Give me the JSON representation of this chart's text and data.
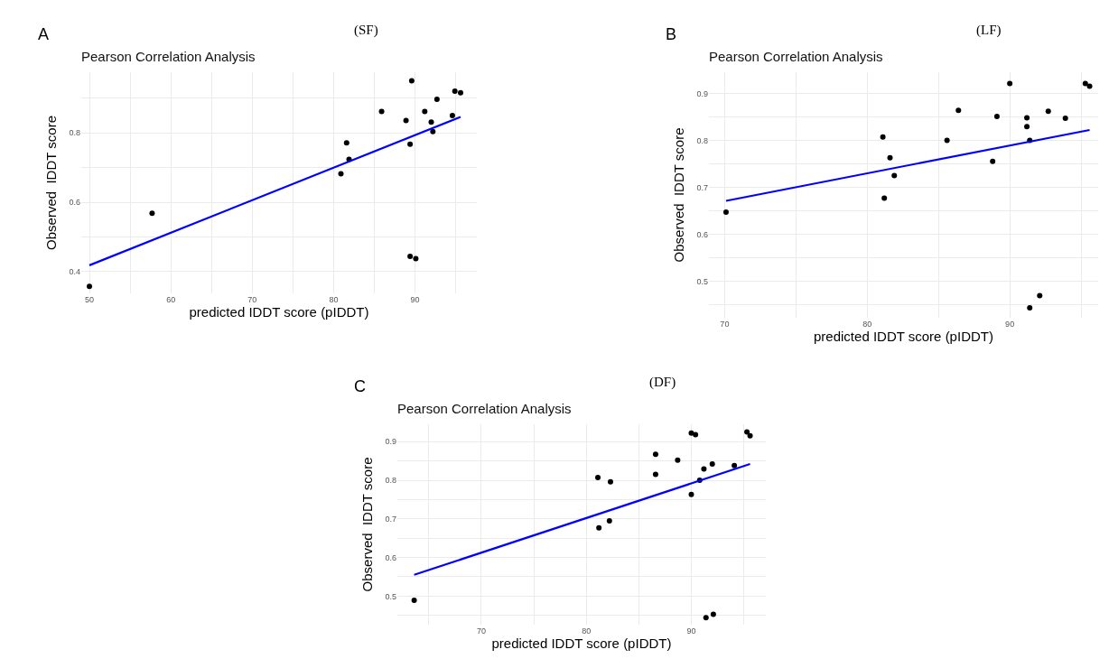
{
  "chart_data": [
    {
      "type": "scatter",
      "title": "Pearson Correlation Analysis",
      "subtitle": "(SF)",
      "xlabel": "predicted IDDT score (pIDDT)",
      "ylabel": "Observed  IDDT score",
      "annotations": [
        "A"
      ],
      "grid": true,
      "xlim": [
        49,
        97.6
      ],
      "ylim": [
        0.337,
        0.975
      ],
      "xticks": [
        50,
        {
          "value": 55,
          "label": null
        },
        60,
        {
          "value": 65,
          "label": null
        },
        70,
        {
          "value": 75,
          "label": null
        },
        80,
        {
          "value": 85,
          "label": null
        },
        90,
        {
          "value": 95,
          "label": null
        }
      ],
      "yticks": [
        0.4,
        {
          "value": 0.5,
          "label": null
        },
        0.6,
        {
          "value": 0.7,
          "label": null
        },
        0.8,
        {
          "value": 0.9,
          "label": null
        }
      ],
      "series": [
        {
          "type": "scatter",
          "marker": "circle",
          "color": "#000000",
          "x": [
            50,
            57.7,
            80.9,
            81.6,
            81.9,
            85.9,
            88.9,
            89.6,
            89.4,
            89.4,
            90.1,
            91.2,
            92.0,
            92.2,
            92.7,
            94.6,
            94.9,
            95.6
          ],
          "values": [
            0.357,
            0.568,
            0.682,
            0.771,
            0.724,
            0.862,
            0.836,
            0.95,
            0.767,
            0.444,
            0.437,
            0.862,
            0.831,
            0.804,
            0.897,
            0.85,
            0.92,
            0.916
          ]
        },
        {
          "type": "line",
          "line_style": "solid",
          "color": "#0000ff",
          "x": [
            50,
            95.6
          ],
          "values": [
            0.418,
            0.846
          ]
        }
      ]
    },
    {
      "type": "scatter",
      "title": "Pearson Correlation Analysis",
      "subtitle": "(LF)",
      "xlabel": "predicted IDDT score (pIDDT)",
      "ylabel": "Observed  IDDT score",
      "annotations": [
        "B"
      ],
      "grid": true,
      "xlim": [
        68.9,
        96.2
      ],
      "ylim": [
        0.422,
        0.945
      ],
      "xticks": [
        70,
        {
          "value": 75,
          "label": null
        },
        80,
        {
          "value": 85,
          "label": null
        },
        90,
        {
          "value": 95,
          "label": null
        }
      ],
      "yticks": [
        {
          "value": 0.45,
          "label": null
        },
        0.5,
        {
          "value": 0.55,
          "label": null
        },
        0.6,
        {
          "value": 0.65,
          "label": null
        },
        0.7,
        {
          "value": 0.75,
          "label": null
        },
        0.8,
        {
          "value": 0.85,
          "label": null
        },
        0.9
      ],
      "series": [
        {
          "type": "scatter",
          "marker": "circle",
          "color": "#000000",
          "x": [
            70.1,
            81.1,
            81.6,
            81.2,
            81.9,
            85.6,
            86.4,
            88.8,
            89.1,
            90.0,
            91.2,
            91.2,
            91.4,
            91.4,
            92.1,
            92.7,
            93.9,
            95.3,
            95.6
          ],
          "values": [
            0.647,
            0.807,
            0.763,
            0.677,
            0.725,
            0.8,
            0.864,
            0.755,
            0.851,
            0.921,
            0.848,
            0.829,
            0.8,
            0.443,
            0.469,
            0.862,
            0.847,
            0.921,
            0.915
          ]
        },
        {
          "type": "line",
          "line_style": "solid",
          "color": "#0000ff",
          "x": [
            70.1,
            95.6
          ],
          "values": [
            0.671,
            0.822
          ]
        }
      ]
    },
    {
      "type": "scatter",
      "title": "Pearson Correlation Analysis",
      "subtitle": "(DF)",
      "xlabel": "predicted IDDT score (pIDDT)",
      "ylabel": "Observed  IDDT score",
      "annotations": [
        "C"
      ],
      "grid": true,
      "xlim": [
        62,
        97.1
      ],
      "ylim": [
        0.426,
        0.945
      ],
      "xticks": [
        {
          "value": 65,
          "label": null
        },
        70,
        {
          "value": 75,
          "label": null
        },
        80,
        {
          "value": 85,
          "label": null
        },
        90,
        {
          "value": 95,
          "label": null
        }
      ],
      "yticks": [
        {
          "value": 0.45,
          "label": null
        },
        0.5,
        {
          "value": 0.55,
          "label": null
        },
        0.6,
        {
          "value": 0.65,
          "label": null
        },
        0.7,
        {
          "value": 0.75,
          "label": null
        },
        0.8,
        {
          "value": 0.85,
          "label": null
        },
        0.9
      ],
      "series": [
        {
          "type": "scatter",
          "marker": "circle",
          "color": "#000000",
          "x": [
            63.6,
            81.1,
            81.2,
            82.3,
            82.2,
            86.6,
            86.6,
            88.7,
            90.0,
            90.4,
            90.0,
            90.8,
            91.2,
            92.0,
            91.4,
            92.1,
            94.1,
            95.3,
            95.6
          ],
          "values": [
            0.489,
            0.807,
            0.677,
            0.796,
            0.695,
            0.867,
            0.815,
            0.852,
            0.922,
            0.918,
            0.763,
            0.8,
            0.829,
            0.842,
            0.444,
            0.453,
            0.838,
            0.925,
            0.915
          ]
        },
        {
          "type": "line",
          "line_style": "solid",
          "color": "#0000ff",
          "x": [
            63.6,
            95.6
          ],
          "values": [
            0.555,
            0.842
          ]
        }
      ]
    }
  ]
}
